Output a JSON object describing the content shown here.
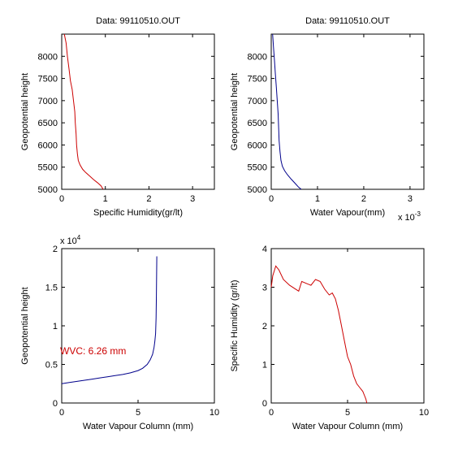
{
  "chart_data": [
    {
      "type": "line",
      "title": "Data: 99110510.OUT",
      "xlabel": "Specific Humidity(gr/lt)",
      "ylabel": "Geopotential height",
      "xlim": [
        0,
        3.5
      ],
      "ylim": [
        5000,
        8500
      ],
      "xticks": [
        0,
        1,
        2,
        3
      ],
      "yticks": [
        5000,
        5500,
        6000,
        6500,
        7000,
        7500,
        8000
      ],
      "x_exponent_label": "",
      "y_exponent_label": "",
      "annotation": "",
      "grid": false,
      "series": [
        {
          "color": "#cc0000",
          "x": [
            0.06,
            0.1,
            0.13,
            0.17,
            0.2,
            0.24,
            0.27,
            0.3,
            0.31,
            0.33,
            0.34,
            0.36,
            0.38,
            0.42,
            0.48,
            0.55,
            0.64,
            0.73,
            0.82,
            0.9,
            0.95
          ],
          "y": [
            8500,
            8300,
            8000,
            7700,
            7450,
            7250,
            7000,
            6750,
            6500,
            6250,
            6000,
            5800,
            5650,
            5550,
            5450,
            5380,
            5300,
            5220,
            5150,
            5080,
            5000
          ]
        }
      ]
    },
    {
      "type": "line",
      "title": "Data: 99110510.OUT",
      "xlabel": "Water Vapour(mm)",
      "ylabel": "Geopotential height",
      "xlim": [
        0,
        0.0033
      ],
      "ylim": [
        5000,
        8500
      ],
      "xticks": [
        0,
        0.001,
        0.002,
        0.003
      ],
      "xticklabels": [
        "0",
        "1",
        "2",
        "3"
      ],
      "yticks": [
        5000,
        5500,
        6000,
        6500,
        7000,
        7500,
        8000
      ],
      "x_exponent_label": "x 10",
      "x_exponent": "-3",
      "y_exponent_label": "",
      "annotation": "",
      "grid": false,
      "series": [
        {
          "color": "#00008b",
          "x": [
            3e-05,
            5e-05,
            7e-05,
            9e-05,
            0.00011,
            0.00013,
            0.00015,
            0.00016,
            0.00017,
            0.00019,
            0.00021,
            0.00024,
            0.00029,
            0.00035,
            0.00043,
            0.00052,
            0.00059,
            0.00065
          ],
          "y": [
            8500,
            8200,
            7900,
            7600,
            7300,
            7000,
            6700,
            6400,
            6100,
            5850,
            5650,
            5520,
            5420,
            5330,
            5230,
            5130,
            5050,
            5000
          ]
        }
      ]
    },
    {
      "type": "line",
      "title": "",
      "xlabel": "Water Vapour Column (mm)",
      "ylabel": "Geopotential height",
      "xlim": [
        0,
        10
      ],
      "ylim": [
        0,
        20000
      ],
      "xticks": [
        0,
        5,
        10
      ],
      "yticks": [
        0,
        5000,
        10000,
        15000,
        20000
      ],
      "yticklabels": [
        "0",
        "0.5",
        "1",
        "1.5",
        "2"
      ],
      "x_exponent_label": "",
      "y_exponent_label": "x 10",
      "y_exponent": "4",
      "annotation": "WVC: 6.26 mm",
      "annotation_color": "#cc0000",
      "grid": false,
      "series": [
        {
          "color": "#00008b",
          "x": [
            0,
            0.5,
            1,
            1.5,
            2,
            2.5,
            3,
            3.5,
            4,
            4.5,
            5,
            5.3,
            5.6,
            5.8,
            5.95,
            6.05,
            6.1,
            6.15,
            6.18,
            6.2,
            6.22,
            6.23
          ],
          "y": [
            2500,
            2650,
            2800,
            2950,
            3100,
            3250,
            3400,
            3550,
            3700,
            3900,
            4200,
            4500,
            5000,
            5600,
            6300,
            7200,
            8000,
            9000,
            11000,
            14000,
            17000,
            19000
          ]
        }
      ]
    },
    {
      "type": "line",
      "title": "",
      "xlabel": "Water Vapour Column (mm)",
      "ylabel": "Specific Humidity (gr/lt)",
      "xlim": [
        0,
        10
      ],
      "ylim": [
        0,
        4
      ],
      "xticks": [
        0,
        5,
        10
      ],
      "yticks": [
        0,
        1,
        2,
        3,
        4
      ],
      "x_exponent_label": "",
      "y_exponent_label": "",
      "annotation": "",
      "grid": false,
      "series": [
        {
          "color": "#cc0000",
          "x": [
            0,
            0.1,
            0.3,
            0.5,
            0.8,
            1.2,
            1.6,
            1.8,
            2.0,
            2.3,
            2.6,
            2.9,
            3.2,
            3.5,
            3.8,
            4.0,
            4.2,
            4.4,
            4.5,
            4.6,
            4.8,
            5.0,
            5.2,
            5.4,
            5.6,
            5.8,
            6.0,
            6.1,
            6.2,
            6.26
          ],
          "y": [
            3.0,
            3.3,
            3.55,
            3.45,
            3.2,
            3.05,
            2.95,
            2.9,
            3.15,
            3.1,
            3.05,
            3.2,
            3.15,
            2.95,
            2.8,
            2.85,
            2.7,
            2.4,
            2.2,
            2.0,
            1.6,
            1.2,
            1.0,
            0.7,
            0.5,
            0.4,
            0.3,
            0.2,
            0.1,
            0
          ]
        }
      ]
    }
  ]
}
